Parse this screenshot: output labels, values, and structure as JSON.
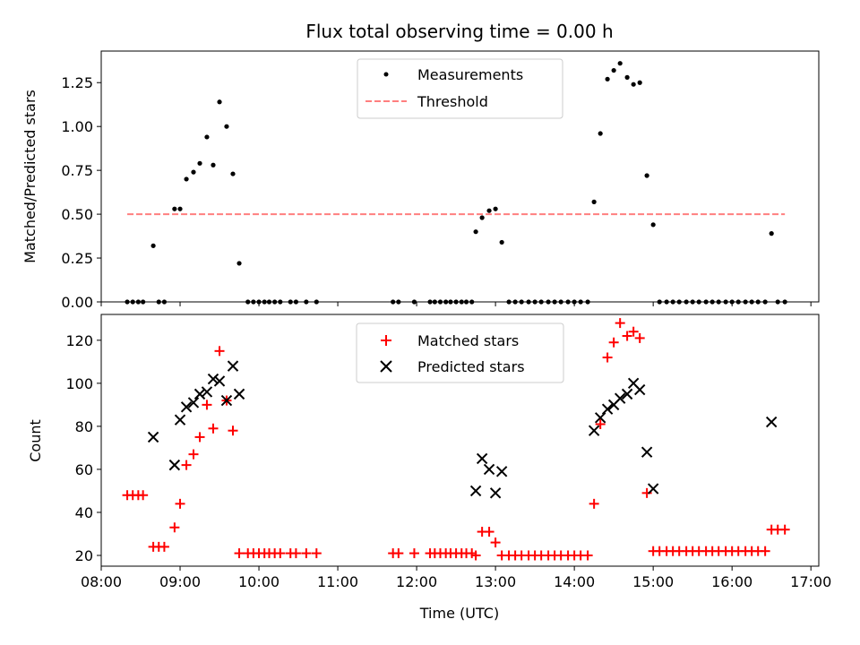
{
  "figure": {
    "title": "Flux total observing time = 0.00 h"
  },
  "chart_data": [
    {
      "type": "scatter",
      "panel": "top",
      "title": "Flux total observing time = 0.00 h",
      "xlabel": "",
      "ylabel": "Matched/Predicted stars",
      "x_is_time": true,
      "xlim": [
        8.0,
        17.1
      ],
      "ylim": [
        0.0,
        1.43
      ],
      "xticks": [
        8,
        9,
        10,
        11,
        12,
        13,
        14,
        15,
        16,
        17
      ],
      "yticks": [
        0.0,
        0.25,
        0.5,
        0.75,
        1.0,
        1.25
      ],
      "ytick_labels": [
        "0.00",
        "0.25",
        "0.50",
        "0.75",
        "1.00",
        "1.25"
      ],
      "legend": {
        "placement": "upper center",
        "entries": [
          "Measurements",
          "Threshold"
        ]
      },
      "series": [
        {
          "name": "Measurements",
          "marker": "dot",
          "color": "#000000",
          "points": [
            [
              8.33,
              0
            ],
            [
              8.4,
              0
            ],
            [
              8.47,
              0
            ],
            [
              8.53,
              0
            ],
            [
              8.66,
              0.32
            ],
            [
              8.73,
              0
            ],
            [
              8.8,
              0
            ],
            [
              8.93,
              0.53
            ],
            [
              9.0,
              0.53
            ],
            [
              9.08,
              0.7
            ],
            [
              9.17,
              0.74
            ],
            [
              9.25,
              0.79
            ],
            [
              9.34,
              0.94
            ],
            [
              9.42,
              0.78
            ],
            [
              9.5,
              1.14
            ],
            [
              9.59,
              1.0
            ],
            [
              9.67,
              0.73
            ],
            [
              9.75,
              0.22
            ],
            [
              9.86,
              0
            ],
            [
              9.93,
              0
            ],
            [
              10.0,
              0
            ],
            [
              10.07,
              0
            ],
            [
              10.13,
              0
            ],
            [
              10.2,
              0
            ],
            [
              10.27,
              0
            ],
            [
              10.4,
              0
            ],
            [
              10.47,
              0
            ],
            [
              10.6,
              0
            ],
            [
              10.73,
              0
            ],
            [
              11.7,
              0
            ],
            [
              11.77,
              0
            ],
            [
              11.97,
              0
            ],
            [
              12.17,
              0
            ],
            [
              12.23,
              0
            ],
            [
              12.3,
              0
            ],
            [
              12.37,
              0
            ],
            [
              12.43,
              0
            ],
            [
              12.5,
              0
            ],
            [
              12.57,
              0
            ],
            [
              12.63,
              0
            ],
            [
              12.7,
              0
            ],
            [
              12.75,
              0.4
            ],
            [
              12.83,
              0.48
            ],
            [
              12.92,
              0.52
            ],
            [
              13.0,
              0.53
            ],
            [
              13.08,
              0.34
            ],
            [
              13.17,
              0
            ],
            [
              13.25,
              0
            ],
            [
              13.33,
              0
            ],
            [
              13.42,
              0
            ],
            [
              13.5,
              0
            ],
            [
              13.58,
              0
            ],
            [
              13.67,
              0
            ],
            [
              13.75,
              0
            ],
            [
              13.83,
              0
            ],
            [
              13.92,
              0
            ],
            [
              14.0,
              0
            ],
            [
              14.08,
              0
            ],
            [
              14.17,
              0
            ],
            [
              14.25,
              0.57
            ],
            [
              14.33,
              0.96
            ],
            [
              14.42,
              1.27
            ],
            [
              14.5,
              1.32
            ],
            [
              14.58,
              1.36
            ],
            [
              14.67,
              1.28
            ],
            [
              14.75,
              1.24
            ],
            [
              14.83,
              1.25
            ],
            [
              14.92,
              0.72
            ],
            [
              15.0,
              0.44
            ],
            [
              15.08,
              0
            ],
            [
              15.17,
              0
            ],
            [
              15.25,
              0
            ],
            [
              15.33,
              0
            ],
            [
              15.42,
              0
            ],
            [
              15.5,
              0
            ],
            [
              15.58,
              0
            ],
            [
              15.67,
              0
            ],
            [
              15.75,
              0
            ],
            [
              15.83,
              0
            ],
            [
              15.92,
              0
            ],
            [
              16.0,
              0
            ],
            [
              16.08,
              0
            ],
            [
              16.17,
              0
            ],
            [
              16.25,
              0
            ],
            [
              16.33,
              0
            ],
            [
              16.42,
              0
            ],
            [
              16.5,
              0.39
            ],
            [
              16.58,
              0
            ],
            [
              16.67,
              0
            ]
          ]
        },
        {
          "name": "Threshold",
          "style": "dashed",
          "color": "#ff7f7f",
          "points": [
            [
              8.33,
              0.5
            ],
            [
              16.67,
              0.5
            ]
          ]
        }
      ]
    },
    {
      "type": "scatter",
      "panel": "bottom",
      "title": "",
      "xlabel": "Time (UTC)",
      "ylabel": "Count",
      "x_is_time": true,
      "xlim": [
        8.0,
        17.1
      ],
      "ylim": [
        15,
        132
      ],
      "xticks": [
        8,
        9,
        10,
        11,
        12,
        13,
        14,
        15,
        16,
        17
      ],
      "xtick_labels": [
        "08:00",
        "09:00",
        "10:00",
        "11:00",
        "12:00",
        "13:00",
        "14:00",
        "15:00",
        "16:00",
        "17:00"
      ],
      "yticks": [
        20,
        40,
        60,
        80,
        100,
        120
      ],
      "ytick_labels": [
        "20",
        "40",
        "60",
        "80",
        "100",
        "120"
      ],
      "legend": {
        "placement": "upper center",
        "entries": [
          "Matched stars",
          "Predicted stars"
        ]
      },
      "series": [
        {
          "name": "Matched stars",
          "marker": "plus",
          "color": "#ff0000",
          "points": [
            [
              8.33,
              48
            ],
            [
              8.4,
              48
            ],
            [
              8.47,
              48
            ],
            [
              8.53,
              48
            ],
            [
              8.66,
              24
            ],
            [
              8.73,
              24
            ],
            [
              8.8,
              24
            ],
            [
              8.93,
              33
            ],
            [
              9.0,
              44
            ],
            [
              9.08,
              62
            ],
            [
              9.17,
              67
            ],
            [
              9.25,
              75
            ],
            [
              9.34,
              90
            ],
            [
              9.42,
              79
            ],
            [
              9.5,
              115
            ],
            [
              9.59,
              92
            ],
            [
              9.67,
              78
            ],
            [
              9.75,
              21
            ],
            [
              9.86,
              21
            ],
            [
              9.93,
              21
            ],
            [
              10.0,
              21
            ],
            [
              10.07,
              21
            ],
            [
              10.13,
              21
            ],
            [
              10.2,
              21
            ],
            [
              10.27,
              21
            ],
            [
              10.4,
              21
            ],
            [
              10.47,
              21
            ],
            [
              10.6,
              21
            ],
            [
              10.73,
              21
            ],
            [
              11.7,
              21
            ],
            [
              11.77,
              21
            ],
            [
              11.97,
              21
            ],
            [
              12.17,
              21
            ],
            [
              12.23,
              21
            ],
            [
              12.3,
              21
            ],
            [
              12.37,
              21
            ],
            [
              12.43,
              21
            ],
            [
              12.5,
              21
            ],
            [
              12.57,
              21
            ],
            [
              12.63,
              21
            ],
            [
              12.7,
              21
            ],
            [
              12.75,
              20
            ],
            [
              12.83,
              31
            ],
            [
              12.92,
              31
            ],
            [
              13.0,
              26
            ],
            [
              13.08,
              20
            ],
            [
              13.17,
              20
            ],
            [
              13.25,
              20
            ],
            [
              13.33,
              20
            ],
            [
              13.42,
              20
            ],
            [
              13.5,
              20
            ],
            [
              13.58,
              20
            ],
            [
              13.67,
              20
            ],
            [
              13.75,
              20
            ],
            [
              13.83,
              20
            ],
            [
              13.92,
              20
            ],
            [
              14.0,
              20
            ],
            [
              14.08,
              20
            ],
            [
              14.17,
              20
            ],
            [
              14.25,
              44
            ],
            [
              14.33,
              81
            ],
            [
              14.42,
              112
            ],
            [
              14.5,
              119
            ],
            [
              14.58,
              128
            ],
            [
              14.67,
              122
            ],
            [
              14.75,
              124
            ],
            [
              14.83,
              121
            ],
            [
              14.92,
              49
            ],
            [
              15.0,
              22
            ],
            [
              15.08,
              22
            ],
            [
              15.17,
              22
            ],
            [
              15.25,
              22
            ],
            [
              15.33,
              22
            ],
            [
              15.42,
              22
            ],
            [
              15.5,
              22
            ],
            [
              15.58,
              22
            ],
            [
              15.67,
              22
            ],
            [
              15.75,
              22
            ],
            [
              15.83,
              22
            ],
            [
              15.92,
              22
            ],
            [
              16.0,
              22
            ],
            [
              16.08,
              22
            ],
            [
              16.17,
              22
            ],
            [
              16.25,
              22
            ],
            [
              16.33,
              22
            ],
            [
              16.42,
              22
            ],
            [
              16.5,
              32
            ],
            [
              16.58,
              32
            ],
            [
              16.67,
              32
            ]
          ]
        },
        {
          "name": "Predicted stars",
          "marker": "x",
          "color": "#000000",
          "points": [
            [
              8.66,
              75
            ],
            [
              8.93,
              62
            ],
            [
              9.0,
              83
            ],
            [
              9.08,
              89
            ],
            [
              9.17,
              91
            ],
            [
              9.25,
              95
            ],
            [
              9.34,
              96
            ],
            [
              9.42,
              102
            ],
            [
              9.5,
              101
            ],
            [
              9.59,
              92
            ],
            [
              9.67,
              108
            ],
            [
              9.75,
              95
            ],
            [
              12.75,
              50
            ],
            [
              12.83,
              65
            ],
            [
              12.92,
              60
            ],
            [
              13.0,
              49
            ],
            [
              13.08,
              59
            ],
            [
              14.25,
              78
            ],
            [
              14.33,
              84
            ],
            [
              14.42,
              88
            ],
            [
              14.5,
              90
            ],
            [
              14.58,
              93
            ],
            [
              14.67,
              95
            ],
            [
              14.75,
              100
            ],
            [
              14.83,
              97
            ],
            [
              14.92,
              68
            ],
            [
              15.0,
              51
            ],
            [
              16.5,
              82
            ]
          ]
        }
      ]
    }
  ]
}
